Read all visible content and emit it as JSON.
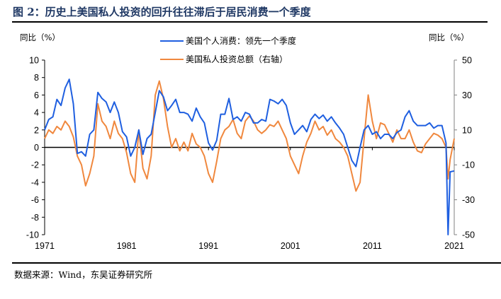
{
  "title": "图 2：历史上美国私人投资的回升往往滞后于居民消费一个季度",
  "source": "数据来源：Wind，东吴证券研究所",
  "colors": {
    "consumption": "#1f5fe0",
    "investment": "#f0883e",
    "axis": "#000000",
    "right_axis": "#808080"
  },
  "chart_data": {
    "type": "line",
    "title": "历史上美国私人投资的回升往往滞后于居民消费一个季度",
    "left_axis": {
      "label": "同比（%）",
      "ylim": [
        -10,
        10
      ],
      "ticks": [
        "10",
        "8",
        "6",
        "4",
        "2",
        "0",
        "-2",
        "-4",
        "-6",
        "-8",
        "-10"
      ],
      "tick_values": [
        10,
        8,
        6,
        4,
        2,
        0,
        -2,
        -4,
        -6,
        -8,
        -10
      ]
    },
    "right_axis": {
      "label": "同比（%）",
      "ylim": [
        -50,
        50
      ],
      "ticks": [
        "50",
        "30",
        "10",
        "-10",
        "-30",
        "-50"
      ],
      "tick_values": [
        50,
        30,
        10,
        -10,
        -30,
        -50
      ]
    },
    "x_axis": {
      "xlim": [
        1971,
        2021.5
      ],
      "ticks": [
        "1971",
        "1981",
        "1991",
        "2001",
        "2011",
        "2021"
      ],
      "tick_values": [
        1971,
        1981,
        1991,
        2001,
        2011,
        2021
      ]
    },
    "legend": {
      "placement": "top-center"
    },
    "grid": false,
    "series": [
      {
        "name": "美国个人消费：领先一个季度",
        "axis": "left",
        "x": [
          1971,
          1971.5,
          1972,
          1972.5,
          1973,
          1973.5,
          1974,
          1974.5,
          1975,
          1975.5,
          1976,
          1976.5,
          1977,
          1977.5,
          1978,
          1978.5,
          1979,
          1979.5,
          1980,
          1980.5,
          1981,
          1981.5,
          1982,
          1982.5,
          1983,
          1983.5,
          1984,
          1984.5,
          1985,
          1985.5,
          1986,
          1986.5,
          1987,
          1987.5,
          1988,
          1988.5,
          1989,
          1989.5,
          1990,
          1990.5,
          1991,
          1991.5,
          1992,
          1992.5,
          1993,
          1993.5,
          1994,
          1994.5,
          1995,
          1995.5,
          1996,
          1996.5,
          1997,
          1997.5,
          1998,
          1998.5,
          1999,
          1999.5,
          2000,
          2000.5,
          2001,
          2001.5,
          2002,
          2002.5,
          2003,
          2003.5,
          2004,
          2004.5,
          2005,
          2005.5,
          2006,
          2006.5,
          2007,
          2007.5,
          2008,
          2008.5,
          2009,
          2009.5,
          2010,
          2010.5,
          2011,
          2011.5,
          2012,
          2012.5,
          2013,
          2013.5,
          2014,
          2014.5,
          2015,
          2015.5,
          2016,
          2016.5,
          2017,
          2017.5,
          2018,
          2018.5,
          2019,
          2019.5,
          2020,
          2020.25,
          2020.5,
          2021
        ],
        "values": [
          2.0,
          3.2,
          3.5,
          5.5,
          4.8,
          6.8,
          7.8,
          5.0,
          -0.7,
          -0.5,
          -1.0,
          1.5,
          2.0,
          6.3,
          5.6,
          5.2,
          4.0,
          5.2,
          4.0,
          1.8,
          1.2,
          -1.0,
          0.0,
          2.0,
          -0.8,
          1.0,
          1.5,
          4.0,
          6.5,
          5.8,
          4.2,
          4.8,
          5.5,
          4.0,
          4.0,
          3.8,
          3.0,
          4.5,
          3.5,
          2.8,
          0.5,
          -0.3,
          0.8,
          3.8,
          3.8,
          5.6,
          3.2,
          3.5,
          3.0,
          4.0,
          3.8,
          2.8,
          2.8,
          3.2,
          3.0,
          5.5,
          5.3,
          5.0,
          5.5,
          4.8,
          2.8,
          1.5,
          2.0,
          2.5,
          1.8,
          3.2,
          3.8,
          3.3,
          3.7,
          3.0,
          3.5,
          2.8,
          2.2,
          1.5,
          0.0,
          -1.5,
          -2.2,
          0.0,
          2.0,
          2.5,
          1.5,
          1.8,
          1.0,
          1.5,
          1.5,
          1.0,
          1.7,
          2.0,
          3.5,
          4.2,
          3.0,
          2.5,
          2.5,
          2.5,
          2.8,
          2.2,
          2.5,
          2.5,
          0.5,
          -10.0,
          -2.8,
          -2.7
        ]
      },
      {
        "name": "美国私人投资总额（右轴）",
        "axis": "right",
        "x": [
          1971,
          1971.5,
          1972,
          1972.5,
          1973,
          1973.5,
          1974,
          1974.5,
          1975,
          1975.5,
          1976,
          1976.5,
          1977,
          1977.5,
          1978,
          1978.5,
          1979,
          1979.5,
          1980,
          1980.5,
          1981,
          1981.5,
          1982,
          1982.5,
          1983,
          1983.5,
          1984,
          1984.5,
          1985,
          1985.5,
          1986,
          1986.5,
          1987,
          1987.5,
          1988,
          1988.5,
          1989,
          1989.5,
          1990,
          1990.5,
          1991,
          1991.5,
          1992,
          1992.5,
          1993,
          1993.5,
          1994,
          1994.5,
          1995,
          1995.5,
          1996,
          1996.5,
          1997,
          1997.5,
          1998,
          1998.5,
          1999,
          1999.5,
          2000,
          2000.5,
          2001,
          2001.5,
          2002,
          2002.5,
          2003,
          2003.5,
          2004,
          2004.5,
          2005,
          2005.5,
          2006,
          2006.5,
          2007,
          2007.5,
          2008,
          2008.5,
          2009,
          2009.5,
          2010,
          2010.5,
          2011,
          2011.5,
          2012,
          2012.5,
          2013,
          2013.5,
          2014,
          2014.5,
          2015,
          2015.5,
          2016,
          2016.5,
          2017,
          2017.5,
          2018,
          2018.5,
          2019,
          2019.5,
          2020,
          2020.25,
          2020.5,
          2021
        ],
        "values": [
          5,
          10,
          8,
          12,
          10,
          15,
          12,
          6,
          -5,
          -10,
          -22,
          -15,
          -5,
          25,
          15,
          12,
          5,
          15,
          8,
          5,
          -3,
          -15,
          -20,
          10,
          -12,
          -18,
          -5,
          30,
          38,
          28,
          12,
          0,
          5,
          -2,
          3,
          -2,
          8,
          2,
          0,
          -5,
          -15,
          -20,
          -8,
          5,
          10,
          12,
          16,
          8,
          5,
          15,
          18,
          15,
          10,
          8,
          10,
          13,
          12,
          15,
          10,
          5,
          -5,
          -10,
          -15,
          -5,
          3,
          8,
          15,
          10,
          12,
          7,
          10,
          5,
          3,
          0,
          -5,
          -15,
          -25,
          -20,
          5,
          30,
          15,
          5,
          14,
          13,
          8,
          3,
          10,
          5,
          5,
          10,
          3,
          -2,
          -3,
          2,
          5,
          8,
          7,
          5,
          0,
          -18,
          -7,
          5
        ]
      }
    ]
  }
}
